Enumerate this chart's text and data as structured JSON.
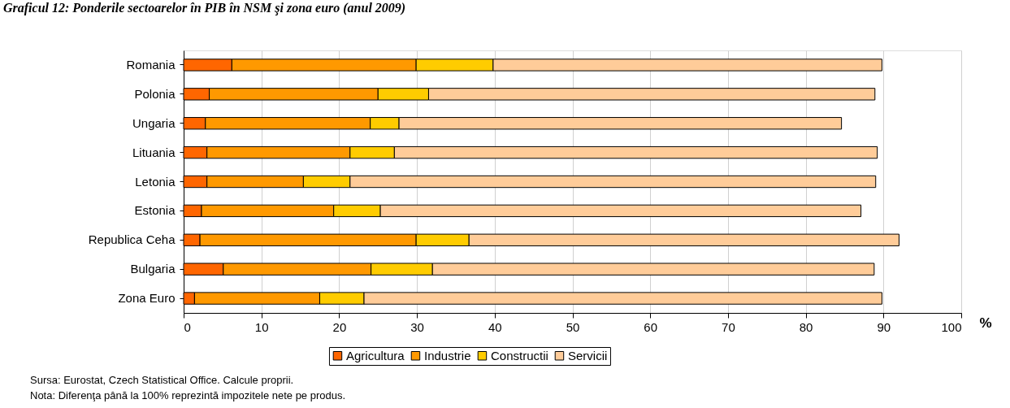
{
  "chart_data": {
    "type": "bar",
    "orientation": "horizontal",
    "stacked": true,
    "title": "Graficul 12: Ponderile sectoarelor în PIB în NSM şi zona euro (anul 2009)",
    "xlabel": "%",
    "categories": [
      "Romania",
      "Polonia",
      "Ungaria",
      "Lituania",
      "Letonia",
      "Estonia",
      "Republica Ceha",
      "Bulgaria",
      "Zona Euro"
    ],
    "series": [
      {
        "name": "Agricultura",
        "color": "#ff6600",
        "values": [
          6.2,
          3.3,
          2.8,
          3.0,
          3.0,
          2.3,
          2.1,
          5.1,
          1.4
        ]
      },
      {
        "name": "Industrie",
        "color": "#ff9900",
        "values": [
          23.7,
          21.7,
          21.2,
          18.4,
          12.4,
          17.0,
          27.8,
          19.0,
          16.1
        ]
      },
      {
        "name": "Constructii",
        "color": "#ffcc00",
        "values": [
          9.9,
          6.5,
          3.7,
          5.7,
          6.0,
          6.0,
          6.8,
          7.9,
          5.7
        ]
      },
      {
        "name": "Servicii",
        "color": "#ffcc99",
        "values": [
          50.0,
          57.4,
          56.9,
          62.1,
          67.6,
          61.8,
          55.3,
          56.8,
          66.6
        ]
      }
    ],
    "xlim": [
      0,
      100
    ],
    "xticks": [
      0,
      10,
      20,
      30,
      40,
      50,
      60,
      70,
      80,
      90,
      100
    ],
    "grid": "x",
    "legend": "bottom",
    "annotations": [
      "Sursa: Eurostat, Czech Statistical Office. Calcule proprii.",
      "Nota: Diferenţa până la 100% reprezintă impozitele nete pe produs."
    ]
  }
}
